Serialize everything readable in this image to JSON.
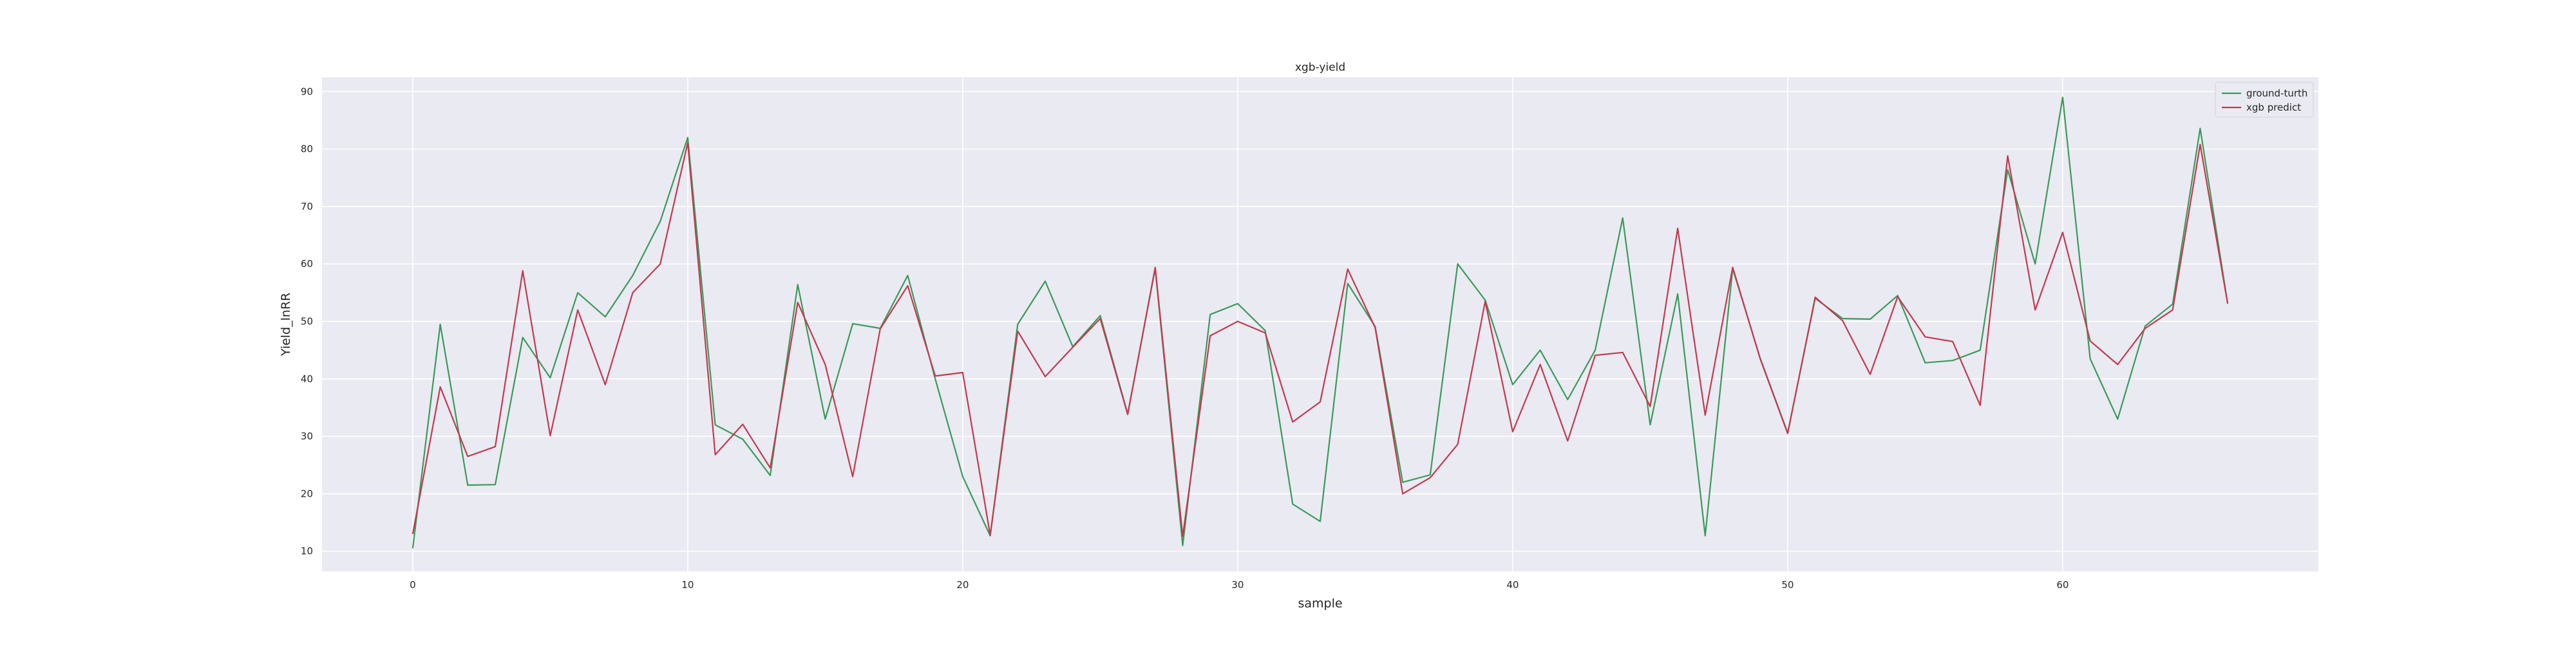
{
  "chart_data": {
    "type": "line",
    "title": "xgb-yield",
    "xlabel": "sample",
    "ylabel": "Yield_lnRR",
    "xlim": [
      -3.3,
      69.3
    ],
    "ylim": [
      6.5,
      92.5
    ],
    "xticks": [
      0,
      10,
      20,
      30,
      40,
      50,
      60
    ],
    "yticks": [
      10,
      20,
      30,
      40,
      50,
      60,
      70,
      80,
      90
    ],
    "grid": true,
    "legend_position": "top-right",
    "series": [
      {
        "name": "ground-turth",
        "color": "#3a9a5a",
        "x": [
          0,
          1,
          2,
          3,
          4,
          5,
          6,
          7,
          8,
          9,
          10,
          11,
          12,
          13,
          14,
          15,
          16,
          17,
          18,
          19,
          20,
          21,
          22,
          23,
          24,
          25,
          26,
          27,
          28,
          29,
          30,
          31,
          32,
          33,
          34,
          35,
          36,
          37,
          38,
          39,
          40,
          41,
          42,
          43,
          44,
          45,
          46,
          47,
          48,
          49,
          50,
          51,
          52,
          53,
          54,
          55,
          56,
          57,
          58,
          59,
          60,
          61,
          62,
          63,
          64,
          65,
          66
        ],
        "values": [
          10.5,
          49.5,
          21.5,
          21.6,
          47.2,
          40.2,
          55,
          50.8,
          58,
          67.4,
          82,
          32,
          29.5,
          23.2,
          56.4,
          33,
          49.6,
          48.8,
          58,
          40,
          23,
          12.7,
          49.5,
          57,
          45.6,
          51,
          33.9,
          59.2,
          11,
          51.2,
          53.1,
          48.4,
          18.2,
          15.2,
          56.6,
          49.1,
          22,
          23.3,
          60,
          53.7,
          39,
          45,
          36.4,
          45,
          68,
          32,
          54.8,
          12.7,
          59.2,
          43.6,
          30.6,
          54,
          50.5,
          50.4,
          54.5,
          42.8,
          43.2,
          45,
          76.4,
          60,
          89,
          43.5,
          33,
          49.2,
          53,
          83.6,
          53.1
        ]
      },
      {
        "name": "xgb predict",
        "color": "#c13a4f",
        "x": [
          0,
          1,
          2,
          3,
          4,
          5,
          6,
          7,
          8,
          9,
          10,
          11,
          12,
          13,
          14,
          15,
          16,
          17,
          18,
          19,
          20,
          21,
          22,
          23,
          24,
          25,
          26,
          27,
          28,
          29,
          30,
          31,
          32,
          33,
          34,
          35,
          36,
          37,
          38,
          39,
          40,
          41,
          42,
          43,
          44,
          45,
          46,
          47,
          48,
          49,
          50,
          51,
          52,
          53,
          54,
          55,
          56,
          57,
          58,
          59,
          60,
          61,
          62,
          63,
          64,
          65,
          66
        ],
        "values": [
          13,
          38.6,
          26.5,
          28.2,
          58.8,
          30.1,
          52,
          39,
          55,
          60,
          81.1,
          26.8,
          32.1,
          24.5,
          53.3,
          42.5,
          23,
          48.7,
          56.2,
          40.5,
          41.1,
          12.8,
          48.3,
          40.4,
          45.5,
          50.5,
          33.8,
          59.4,
          12.6,
          47.5,
          50,
          48,
          32.5,
          36,
          59.1,
          48.9,
          20,
          22.8,
          28.6,
          53.5,
          30.8,
          42.5,
          29.2,
          44.1,
          44.6,
          35.2,
          66.2,
          33.7,
          59.4,
          43.5,
          30.5,
          54.2,
          50.1,
          40.8,
          54.3,
          47.3,
          46.5,
          35.4,
          78.8,
          52,
          65.5,
          46.6,
          42.5,
          48.8,
          52,
          80.8,
          53.1
        ]
      }
    ]
  }
}
